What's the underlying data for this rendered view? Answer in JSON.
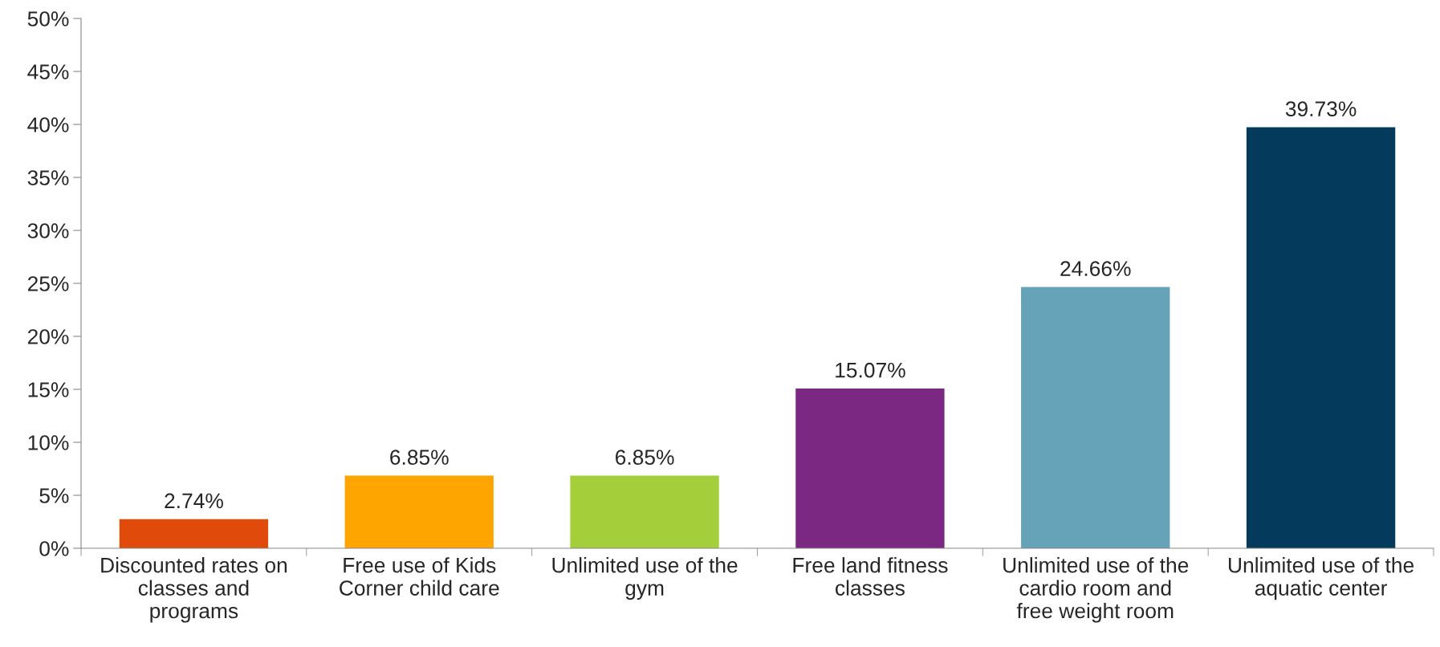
{
  "chart_data": {
    "type": "bar",
    "categories": [
      "Discounted rates on\nclasses and\nprograms",
      "Free use of Kids\nCorner child care",
      "Unlimited use of the\ngym",
      "Free land fitness\nclasses",
      "Unlimited use of the\ncardio room and\nfree weight room",
      "Unlimited use of the\naquatic center"
    ],
    "values": [
      2.74,
      6.85,
      6.85,
      15.07,
      24.66,
      39.73
    ],
    "colors": [
      "#e04a0a",
      "#ffa500",
      "#a4cf3a",
      "#7b2882",
      "#67a3b8",
      "#043a5c"
    ],
    "value_labels": [
      "2.74%",
      "6.85%",
      "6.85%",
      "15.07%",
      "24.66%",
      "39.73%"
    ],
    "ylim": [
      0,
      50
    ],
    "yticks": [
      {
        "value": 0,
        "label": "0%"
      },
      {
        "value": 5,
        "label": "5%"
      },
      {
        "value": 10,
        "label": "10%"
      },
      {
        "value": 15,
        "label": "15%"
      },
      {
        "value": 20,
        "label": "20%"
      },
      {
        "value": 25,
        "label": "25%"
      },
      {
        "value": 30,
        "label": "30%"
      },
      {
        "value": 35,
        "label": "35%"
      },
      {
        "value": 40,
        "label": "40%"
      },
      {
        "value": 45,
        "label": "45%"
      },
      {
        "value": 50,
        "label": "50%"
      }
    ],
    "grid": false,
    "legend": false
  }
}
